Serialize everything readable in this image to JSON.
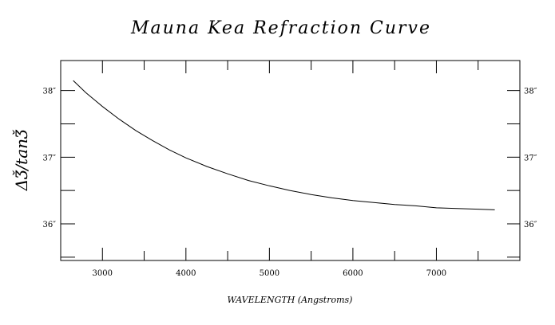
{
  "chart_data": {
    "type": "line",
    "title": "Mauna Kea Refraction Curve",
    "xlabel": "WAVELENGTH (Angstroms)",
    "ylabel": "ΔǮ/tanǮ",
    "xlim": [
      2500,
      8000
    ],
    "ylim": [
      35.45,
      38.45
    ],
    "x_ticks": [
      3000,
      4000,
      5000,
      6000,
      7000
    ],
    "x_tick_labels": [
      "3000",
      "4000",
      "5000",
      "6000",
      "7000"
    ],
    "y_ticks": [
      36,
      37,
      38
    ],
    "y_tick_labels": [
      "36″",
      "37″",
      "38″"
    ],
    "series": [
      {
        "x": [
          2650,
          2800,
          3000,
          3200,
          3400,
          3600,
          3800,
          4000,
          4250,
          4500,
          4750,
          5000,
          5250,
          5500,
          5750,
          6000,
          6250,
          6500,
          6750,
          7000,
          7250,
          7500,
          7700
        ],
        "y": [
          38.15,
          37.97,
          37.76,
          37.57,
          37.4,
          37.25,
          37.11,
          36.99,
          36.86,
          36.75,
          36.65,
          36.57,
          36.5,
          36.44,
          36.39,
          36.35,
          36.32,
          36.29,
          36.27,
          36.24,
          36.23,
          36.22,
          36.21
        ]
      }
    ],
    "grid": false,
    "legend": "none"
  }
}
